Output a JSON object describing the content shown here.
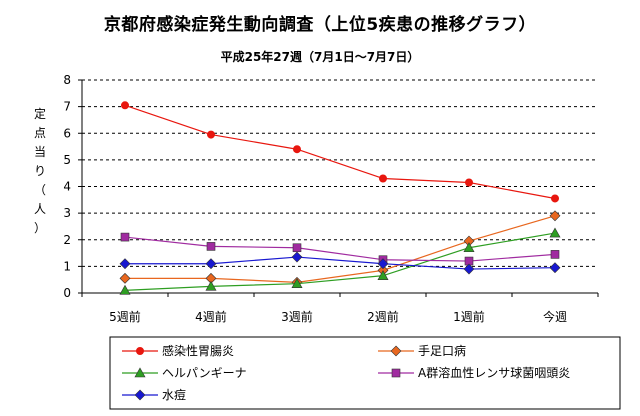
{
  "chart_data": {
    "type": "line",
    "title": "京都府感染症発生動向調査（上位5疾患の推移グラフ）",
    "subtitle": "平成25年27週（7月1日〜7月7日）",
    "ylabel": "定点当り（人）",
    "xlabel": "",
    "ylim": [
      0,
      8
    ],
    "yticks": [
      0,
      1,
      2,
      3,
      4,
      5,
      6,
      7,
      8
    ],
    "grid": "horizontal-dashed",
    "legend_position": "bottom",
    "categories": [
      "5週前",
      "4週前",
      "3週前",
      "2週前",
      "1週前",
      "今週"
    ],
    "series": [
      {
        "name": "感染性胃腸炎",
        "color": "#e8170f",
        "marker": "circle",
        "values": [
          7.05,
          5.95,
          5.4,
          4.3,
          4.15,
          3.55
        ]
      },
      {
        "name": "手足口病",
        "color": "#e8671f",
        "marker": "diamond",
        "values": [
          0.55,
          0.55,
          0.4,
          0.85,
          1.95,
          2.9
        ]
      },
      {
        "name": "ヘルパンギーナ",
        "color": "#2e9e22",
        "marker": "triangle",
        "values": [
          0.1,
          0.25,
          0.35,
          0.65,
          1.7,
          2.25
        ]
      },
      {
        "name": "A群溶血性レンサ球菌咽頭炎",
        "color": "#a02ba0",
        "marker": "square",
        "values": [
          2.1,
          1.75,
          1.7,
          1.25,
          1.2,
          1.45
        ]
      },
      {
        "name": "水痘",
        "color": "#1818d0",
        "marker": "diamond",
        "values": [
          1.1,
          1.1,
          1.35,
          1.1,
          0.9,
          0.95
        ]
      }
    ]
  }
}
